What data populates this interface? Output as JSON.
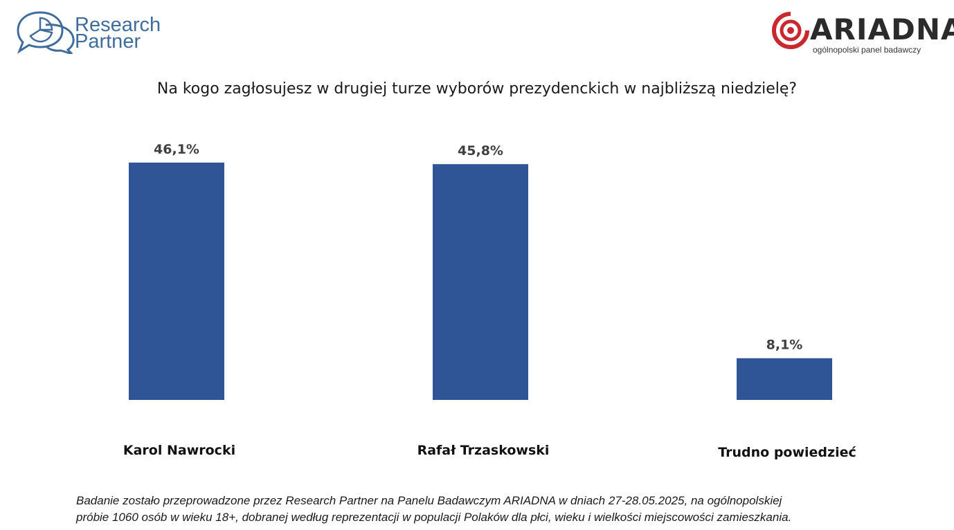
{
  "logos": {
    "left": {
      "line1": "Research",
      "line2": "Partner",
      "icon": "chat-bubbles-pie-icon"
    },
    "right": {
      "word": "ARIADNA",
      "subtitle": "ogólnopolski panel badawczy",
      "icon": "spiral-circle-icon",
      "accent": "#c8282e"
    }
  },
  "chart_data": {
    "type": "bar",
    "title": "Na kogo zagłosujesz w drugiej turze wyborów prezydenckich w najbliższą niedzielę?",
    "categories": [
      "Karol Nawrocki",
      "Rafał Trzaskowski",
      "Trudno powiedzieć"
    ],
    "values": [
      46.1,
      45.8,
      8.1
    ],
    "value_labels": [
      "46,1%",
      "45,8%",
      "8,1%"
    ],
    "xlabel": "",
    "ylabel": "",
    "ylim": [
      0,
      50
    ],
    "grid": false,
    "legend": "none",
    "bar_color": "#2f5597"
  },
  "footnote": {
    "line1": "Badanie zostało przeprowadzone przez Research Partner na Panelu Badawczym ARIADNA w dniach 27-28.05.2025, na ogólnopolskiej",
    "line2": "próbie 1060 osób w wieku 18+, dobranej według reprezentacji w populacji Polaków dla płci, wieku i wielkości miejscowości zamieszkania."
  }
}
